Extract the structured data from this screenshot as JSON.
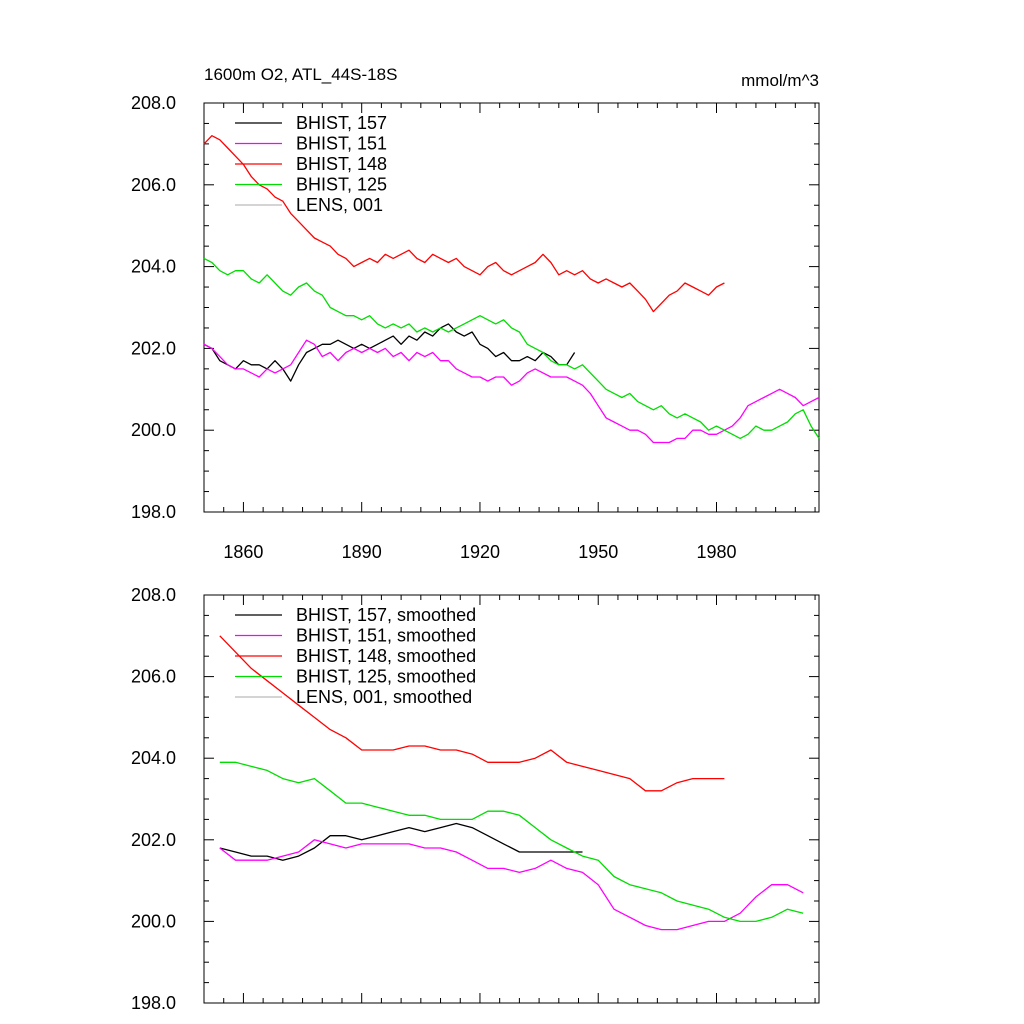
{
  "header": {
    "title": "1600m O2, ATL_44S-18S",
    "units": "mmol/m^3"
  },
  "colors": {
    "axis": "#000000",
    "s157": "#000000",
    "s151": "#ff00ff",
    "s148": "#ff0000",
    "s125": "#00dd00",
    "lens": "#bbbbbb"
  },
  "chart_data": [
    {
      "type": "line",
      "title": "1600m O2, ATL_44S-18S",
      "xlabel": "",
      "ylabel": "",
      "xlim": [
        1850,
        2006
      ],
      "ylim": [
        198,
        208
      ],
      "xticks": [
        1860,
        1890,
        1920,
        1950,
        1980
      ],
      "xtick_labels": [
        "1860",
        "1890",
        "1920",
        "1950",
        "1980"
      ],
      "yticks": [
        198,
        200,
        202,
        204,
        206,
        208
      ],
      "ytick_labels": [
        "198.0",
        "200.0",
        "202.0",
        "204.0",
        "206.0",
        "208.0"
      ],
      "legend_position": "top-left",
      "legend": [
        "BHIST, 157",
        "BHIST, 151",
        "BHIST, 148",
        "BHIST, 125",
        "LENS, 001"
      ],
      "series": [
        {
          "name": "BHIST, 157",
          "color_key": "s157",
          "x": [
            1850,
            1852,
            1854,
            1856,
            1858,
            1860,
            1862,
            1864,
            1866,
            1868,
            1870,
            1872,
            1874,
            1876,
            1878,
            1880,
            1882,
            1884,
            1886,
            1888,
            1890,
            1892,
            1894,
            1896,
            1898,
            1900,
            1902,
            1904,
            1906,
            1908,
            1910,
            1912,
            1914,
            1916,
            1918,
            1920,
            1922,
            1924,
            1926,
            1928,
            1930,
            1932,
            1934,
            1936,
            1938,
            1940,
            1942,
            1944
          ],
          "values": [
            202.1,
            202.0,
            201.7,
            201.6,
            201.5,
            201.7,
            201.6,
            201.6,
            201.5,
            201.7,
            201.5,
            201.2,
            201.6,
            201.9,
            202.0,
            202.1,
            202.1,
            202.2,
            202.1,
            202.0,
            202.1,
            202.0,
            202.1,
            202.2,
            202.3,
            202.1,
            202.3,
            202.2,
            202.4,
            202.3,
            202.5,
            202.6,
            202.4,
            202.3,
            202.4,
            202.1,
            202.0,
            201.8,
            201.9,
            201.7,
            201.7,
            201.8,
            201.7,
            201.9,
            201.8,
            201.6,
            201.6,
            201.9
          ]
        },
        {
          "name": "BHIST, 151",
          "color_key": "s151",
          "x": [
            1850,
            1852,
            1854,
            1856,
            1858,
            1860,
            1862,
            1864,
            1866,
            1868,
            1870,
            1872,
            1874,
            1876,
            1878,
            1880,
            1882,
            1884,
            1886,
            1888,
            1890,
            1892,
            1894,
            1896,
            1898,
            1900,
            1902,
            1904,
            1906,
            1908,
            1910,
            1912,
            1914,
            1916,
            1918,
            1920,
            1922,
            1924,
            1926,
            1928,
            1930,
            1932,
            1934,
            1936,
            1938,
            1940,
            1942,
            1944,
            1946,
            1948,
            1950,
            1952,
            1954,
            1956,
            1958,
            1960,
            1962,
            1964,
            1966,
            1968,
            1970,
            1972,
            1974,
            1976,
            1978,
            1980,
            1982,
            1984,
            1986,
            1988,
            1990,
            1992,
            1994,
            1996,
            1998,
            2000,
            2002,
            2004,
            2006
          ],
          "values": [
            202.1,
            202.0,
            201.8,
            201.6,
            201.5,
            201.5,
            201.4,
            201.3,
            201.5,
            201.4,
            201.5,
            201.6,
            201.9,
            202.2,
            202.1,
            201.8,
            201.9,
            201.7,
            201.9,
            202.0,
            201.9,
            202.0,
            201.9,
            202.0,
            201.8,
            201.9,
            201.7,
            201.9,
            201.8,
            201.9,
            201.7,
            201.7,
            201.5,
            201.4,
            201.3,
            201.3,
            201.2,
            201.3,
            201.3,
            201.1,
            201.2,
            201.4,
            201.5,
            201.4,
            201.3,
            201.3,
            201.3,
            201.2,
            201.1,
            200.9,
            200.6,
            200.3,
            200.2,
            200.1,
            200.0,
            200.0,
            199.9,
            199.7,
            199.7,
            199.7,
            199.8,
            199.8,
            200.0,
            200.0,
            199.9,
            199.9,
            200.0,
            200.1,
            200.3,
            200.6,
            200.7,
            200.8,
            200.9,
            201.0,
            200.9,
            200.8,
            200.6,
            200.7,
            200.8
          ]
        },
        {
          "name": "BHIST, 148",
          "color_key": "s148",
          "x": [
            1850,
            1852,
            1854,
            1856,
            1858,
            1860,
            1862,
            1864,
            1866,
            1868,
            1870,
            1872,
            1874,
            1876,
            1878,
            1880,
            1882,
            1884,
            1886,
            1888,
            1890,
            1892,
            1894,
            1896,
            1898,
            1900,
            1902,
            1904,
            1906,
            1908,
            1910,
            1912,
            1914,
            1916,
            1918,
            1920,
            1922,
            1924,
            1926,
            1928,
            1930,
            1932,
            1934,
            1936,
            1938,
            1940,
            1942,
            1944,
            1946,
            1948,
            1950,
            1952,
            1954,
            1956,
            1958,
            1960,
            1962,
            1964,
            1966,
            1968,
            1970,
            1972,
            1974,
            1976,
            1978,
            1980,
            1982
          ],
          "values": [
            207.0,
            207.2,
            207.1,
            206.9,
            206.7,
            206.5,
            206.2,
            206.0,
            205.9,
            205.7,
            205.6,
            205.3,
            205.1,
            204.9,
            204.7,
            204.6,
            204.5,
            204.3,
            204.2,
            204.0,
            204.1,
            204.2,
            204.1,
            204.3,
            204.2,
            204.3,
            204.4,
            204.2,
            204.1,
            204.3,
            204.2,
            204.1,
            204.2,
            204.0,
            203.9,
            203.8,
            204.0,
            204.1,
            203.9,
            203.8,
            203.9,
            204.0,
            204.1,
            204.3,
            204.1,
            203.8,
            203.9,
            203.8,
            203.9,
            203.7,
            203.6,
            203.7,
            203.6,
            203.5,
            203.6,
            203.4,
            203.2,
            202.9,
            203.1,
            203.3,
            203.4,
            203.6,
            203.5,
            203.4,
            203.3,
            203.5,
            203.6
          ]
        },
        {
          "name": "BHIST, 125",
          "color_key": "s125",
          "x": [
            1850,
            1852,
            1854,
            1856,
            1858,
            1860,
            1862,
            1864,
            1866,
            1868,
            1870,
            1872,
            1874,
            1876,
            1878,
            1880,
            1882,
            1884,
            1886,
            1888,
            1890,
            1892,
            1894,
            1896,
            1898,
            1900,
            1902,
            1904,
            1906,
            1908,
            1910,
            1912,
            1914,
            1916,
            1918,
            1920,
            1922,
            1924,
            1926,
            1928,
            1930,
            1932,
            1934,
            1936,
            1938,
            1940,
            1942,
            1944,
            1946,
            1948,
            1950,
            1952,
            1954,
            1956,
            1958,
            1960,
            1962,
            1964,
            1966,
            1968,
            1970,
            1972,
            1974,
            1976,
            1978,
            1980,
            1982,
            1984,
            1986,
            1988,
            1990,
            1992,
            1994,
            1996,
            1998,
            2000,
            2002,
            2004,
            2006
          ],
          "values": [
            204.2,
            204.1,
            203.9,
            203.8,
            203.9,
            203.9,
            203.7,
            203.6,
            203.8,
            203.6,
            203.4,
            203.3,
            203.5,
            203.6,
            203.4,
            203.3,
            203.0,
            202.9,
            202.8,
            202.8,
            202.7,
            202.8,
            202.6,
            202.5,
            202.6,
            202.5,
            202.6,
            202.4,
            202.5,
            202.4,
            202.5,
            202.4,
            202.5,
            202.6,
            202.7,
            202.8,
            202.7,
            202.6,
            202.7,
            202.5,
            202.4,
            202.1,
            202.0,
            201.9,
            201.7,
            201.6,
            201.6,
            201.5,
            201.6,
            201.4,
            201.2,
            201.0,
            200.9,
            200.8,
            200.9,
            200.7,
            200.6,
            200.5,
            200.6,
            200.4,
            200.3,
            200.4,
            200.3,
            200.2,
            200.0,
            200.1,
            200.0,
            199.9,
            199.8,
            199.9,
            200.1,
            200.0,
            200.0,
            200.1,
            200.2,
            200.4,
            200.5,
            200.1,
            199.8
          ]
        }
      ]
    },
    {
      "type": "line",
      "title": "",
      "xlabel": "",
      "ylabel": "",
      "xlim": [
        1850,
        2006
      ],
      "ylim": [
        198,
        208
      ],
      "xticks": [
        1860,
        1890,
        1920,
        1950,
        1980
      ],
      "xtick_labels": [],
      "yticks": [
        198,
        200,
        202,
        204,
        206,
        208
      ],
      "ytick_labels": [
        "198.0",
        "200.0",
        "202.0",
        "204.0",
        "206.0",
        "208.0"
      ],
      "legend_position": "top-left",
      "legend": [
        "BHIST, 157, smoothed",
        "BHIST, 151, smoothed",
        "BHIST, 148, smoothed",
        "BHIST, 125, smoothed",
        "LENS, 001, smoothed"
      ],
      "series": [
        {
          "name": "BHIST, 157, smoothed",
          "color_key": "s157",
          "x": [
            1854,
            1858,
            1862,
            1866,
            1870,
            1874,
            1878,
            1882,
            1886,
            1890,
            1894,
            1898,
            1902,
            1906,
            1910,
            1914,
            1918,
            1922,
            1926,
            1930,
            1934,
            1938,
            1942,
            1946
          ],
          "values": [
            201.8,
            201.7,
            201.6,
            201.6,
            201.5,
            201.6,
            201.8,
            202.1,
            202.1,
            202.0,
            202.1,
            202.2,
            202.3,
            202.2,
            202.3,
            202.4,
            202.3,
            202.1,
            201.9,
            201.7,
            201.7,
            201.7,
            201.7,
            201.7
          ]
        },
        {
          "name": "BHIST, 151, smoothed",
          "color_key": "s151",
          "x": [
            1854,
            1858,
            1862,
            1866,
            1870,
            1874,
            1878,
            1882,
            1886,
            1890,
            1894,
            1898,
            1902,
            1906,
            1910,
            1914,
            1918,
            1922,
            1926,
            1930,
            1934,
            1938,
            1942,
            1946,
            1950,
            1954,
            1958,
            1962,
            1966,
            1970,
            1974,
            1978,
            1982,
            1986,
            1990,
            1994,
            1998,
            2002
          ],
          "values": [
            201.8,
            201.5,
            201.5,
            201.5,
            201.6,
            201.7,
            202.0,
            201.9,
            201.8,
            201.9,
            201.9,
            201.9,
            201.9,
            201.8,
            201.8,
            201.7,
            201.5,
            201.3,
            201.3,
            201.2,
            201.3,
            201.5,
            201.3,
            201.2,
            200.9,
            200.3,
            200.1,
            199.9,
            199.8,
            199.8,
            199.9,
            200.0,
            200.0,
            200.2,
            200.6,
            200.9,
            200.9,
            200.7
          ]
        },
        {
          "name": "BHIST, 148, smoothed",
          "color_key": "s148",
          "x": [
            1854,
            1858,
            1862,
            1866,
            1870,
            1874,
            1878,
            1882,
            1886,
            1890,
            1894,
            1898,
            1902,
            1906,
            1910,
            1914,
            1918,
            1922,
            1926,
            1930,
            1934,
            1938,
            1942,
            1946,
            1950,
            1954,
            1958,
            1962,
            1966,
            1970,
            1974,
            1978,
            1982
          ],
          "values": [
            207.0,
            206.6,
            206.2,
            205.9,
            205.6,
            205.3,
            205.0,
            204.7,
            204.5,
            204.2,
            204.2,
            204.2,
            204.3,
            204.3,
            204.2,
            204.2,
            204.1,
            203.9,
            203.9,
            203.9,
            204.0,
            204.2,
            203.9,
            203.8,
            203.7,
            203.6,
            203.5,
            203.2,
            203.2,
            203.4,
            203.5,
            203.5,
            203.5
          ]
        },
        {
          "name": "BHIST, 125, smoothed",
          "color_key": "s125",
          "x": [
            1854,
            1858,
            1862,
            1866,
            1870,
            1874,
            1878,
            1882,
            1886,
            1890,
            1894,
            1898,
            1902,
            1906,
            1910,
            1914,
            1918,
            1922,
            1926,
            1930,
            1934,
            1938,
            1942,
            1946,
            1950,
            1954,
            1958,
            1962,
            1966,
            1970,
            1974,
            1978,
            1982,
            1986,
            1990,
            1994,
            1998,
            2002
          ],
          "values": [
            203.9,
            203.9,
            203.8,
            203.7,
            203.5,
            203.4,
            203.5,
            203.2,
            202.9,
            202.9,
            202.8,
            202.7,
            202.6,
            202.6,
            202.5,
            202.5,
            202.5,
            202.7,
            202.7,
            202.6,
            202.3,
            202.0,
            201.8,
            201.6,
            201.5,
            201.1,
            200.9,
            200.8,
            200.7,
            200.5,
            200.4,
            200.3,
            200.1,
            200.0,
            200.0,
            200.1,
            200.3,
            200.2
          ]
        }
      ]
    }
  ]
}
